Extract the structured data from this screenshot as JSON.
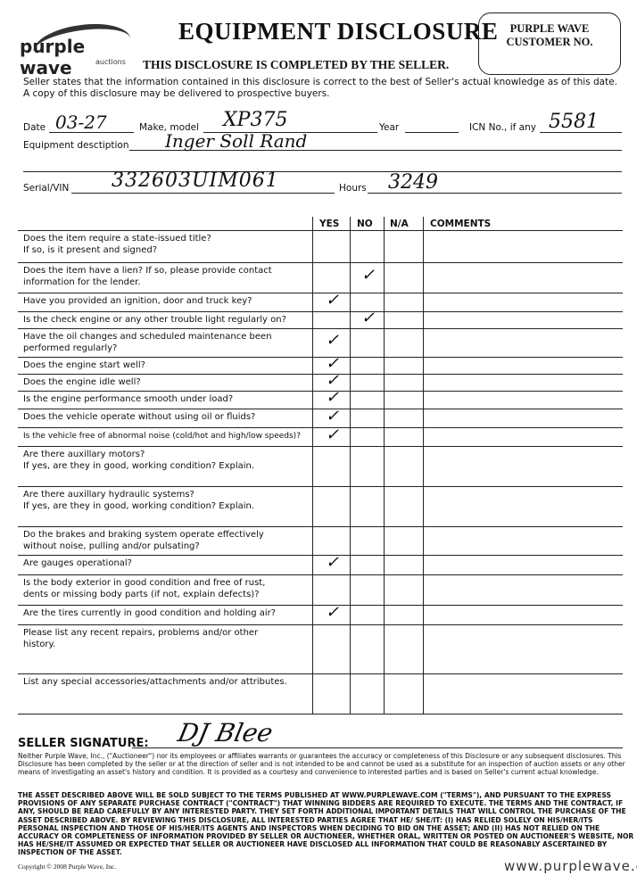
{
  "header": {
    "logo": {
      "name": "purple wave",
      "sub": "auctions"
    },
    "title": "EQUIPMENT DISCLOSURE",
    "subtitle": "THIS DISCLOSURE IS COMPLETED BY THE SELLER.",
    "customer_box": {
      "line1": "PURPLE WAVE",
      "line2": "CUSTOMER NO.",
      "value": ""
    }
  },
  "intro": {
    "line1": "Seller states that the information contained in this disclosure is correct to the best of Seller's actual knowledge as of this date.",
    "line2": "A copy of this disclosure may be delivered to prospective buyers."
  },
  "fields": {
    "date": {
      "label": "Date",
      "value": "03-27"
    },
    "make_model": {
      "label": "Make, model",
      "value": "XP375"
    },
    "year": {
      "label": "Year",
      "value": ""
    },
    "icn": {
      "label": "ICN No., if any",
      "value": "5581"
    },
    "description": {
      "label": "Equipment desctiption",
      "value": "Inger Soll Rand"
    },
    "serial": {
      "label": "Serial/VIN",
      "value": "332603UIM061"
    },
    "hours": {
      "label": "Hours",
      "value": "3249"
    }
  },
  "table": {
    "columns": [
      "YES",
      "NO",
      "N/A",
      "COMMENTS"
    ],
    "check_mark": "✓",
    "rows": [
      {
        "q": [
          "Does the item require a state-issued title?",
          "If so, is it present and signed?"
        ],
        "answer": ""
      },
      {
        "q": [
          "Does the item have a lien? If so, please provide contact",
          "information for the lender."
        ],
        "answer": "NO"
      },
      {
        "q": [
          "Have you provided an ignition, door and truck key?"
        ],
        "answer": "YES"
      },
      {
        "q": [
          "Is the check engine or any other trouble light regularly on?"
        ],
        "answer": "NO"
      },
      {
        "q": [
          "Have the oil changes and scheduled maintenance been",
          "performed regularly?"
        ],
        "answer": "YES"
      },
      {
        "q": [
          "Does the engine start well?"
        ],
        "answer": "YES"
      },
      {
        "q": [
          "Does the engine idle well?"
        ],
        "answer": "YES"
      },
      {
        "q": [
          "Is the engine performance smooth under load?"
        ],
        "answer": "YES"
      },
      {
        "q": [
          "Does the vehicle operate without using oil or fluids?"
        ],
        "answer": "YES"
      },
      {
        "q": [
          "Is the vehicle free of abnormal noise (cold/hot and high/low speeds)?"
        ],
        "answer": "YES"
      },
      {
        "q": [
          "Are there auxillary motors?",
          "If yes, are they in good, working condition? Explain."
        ],
        "answer": ""
      },
      {
        "q": [
          "Are there auxillary hydraulic systems?",
          "If yes, are they in good, working condition? Explain."
        ],
        "answer": ""
      },
      {
        "q": [
          "Do the brakes and braking system operate effectively",
          "without noise, pulling and/or pulsating?"
        ],
        "answer": ""
      },
      {
        "q": [
          "Are gauges operational?"
        ],
        "answer": "YES"
      },
      {
        "q": [
          "Is the body exterior in good condition and free of rust,",
          "dents or missing body parts (if not, explain defects)?"
        ],
        "answer": ""
      },
      {
        "q": [
          "Are the tires currently in good condition and holding air?"
        ],
        "answer": "YES"
      },
      {
        "q": [
          "Please list any recent repairs, problems and/or other",
          "history."
        ],
        "answer": ""
      },
      {
        "q": [
          "List any special accessories/attachments and/or attributes."
        ],
        "answer": ""
      }
    ]
  },
  "signature": {
    "label": "SELLER SIGNATURE:",
    "value": "DJ Blee"
  },
  "disclaimer": "Neither Purple Wave, Inc., (\"Auctioneer\") nor its employees or affiliates warrants or guarantees the accuracy or completeness of this Disclosure or any subsequent disclosures. This Disclosure has been completed by the seller or at the direction of seller and is not intended to be and cannot be used as a substitute for an inspection of auction assets or any other means of investigating an asset's history and condition. It is provided as a courtesy and convenience to interested parties and is based on Seller's current actual knowledge.",
  "terms": "THE ASSET DESCRIBED ABOVE WILL BE SOLD SUBJECT TO THE TERMS PUBLISHED AT WWW.PURPLEWAVE.COM (\"TERMS\"), AND PURSUANT TO THE EXPRESS PROVISIONS OF ANY SEPARATE PURCHASE CONTRACT (\"CONTRACT\") THAT WINNING BIDDERS ARE REQUIRED TO EXECUTE. THE TERMS AND THE CONTRACT, IF ANY, SHOULD BE READ CAREFULLY BY ANY INTERESTED PARTY. THEY SET FORTH ADDITIONAL IMPORTANT DETAILS THAT WILL CONTROL THE PURCHASE OF THE ASSET DESCRIBED ABOVE. BY REVIEWING THIS DISCLOSURE, ALL INTERESTED PARTIES AGREE THAT HE/ SHE/IT: (I) HAS RELIED SOLELY ON HIS/HER/ITS PERSONAL INSPECTION AND THOSE OF HIS/HER/ITS AGENTS AND INSPECTORS WHEN DECIDING TO BID ON THE ASSET; AND (II) HAS NOT RELIED ON THE ACCURACY OR COMPLETENESS OF INFORMATION PROVIDED BY SELLER OR AUCTIONEER, WHETHER ORAL, WRITTEN OR POSTED ON AUCTIONEER'S WEBSITE, NOR HAS HE/SHE/IT ASSUMED OR EXPECTED THAT SELLER OR AUCTIONEER HAVE DISCLOSED ALL INFORMATION THAT COULD BE REASONABLY ASCERTAINED BY INSPECTION OF THE ASSET.",
  "footer": {
    "copyright": "Copyright © 2008 Purple Wave, Inc.",
    "url": "www.purplewave.com"
  }
}
